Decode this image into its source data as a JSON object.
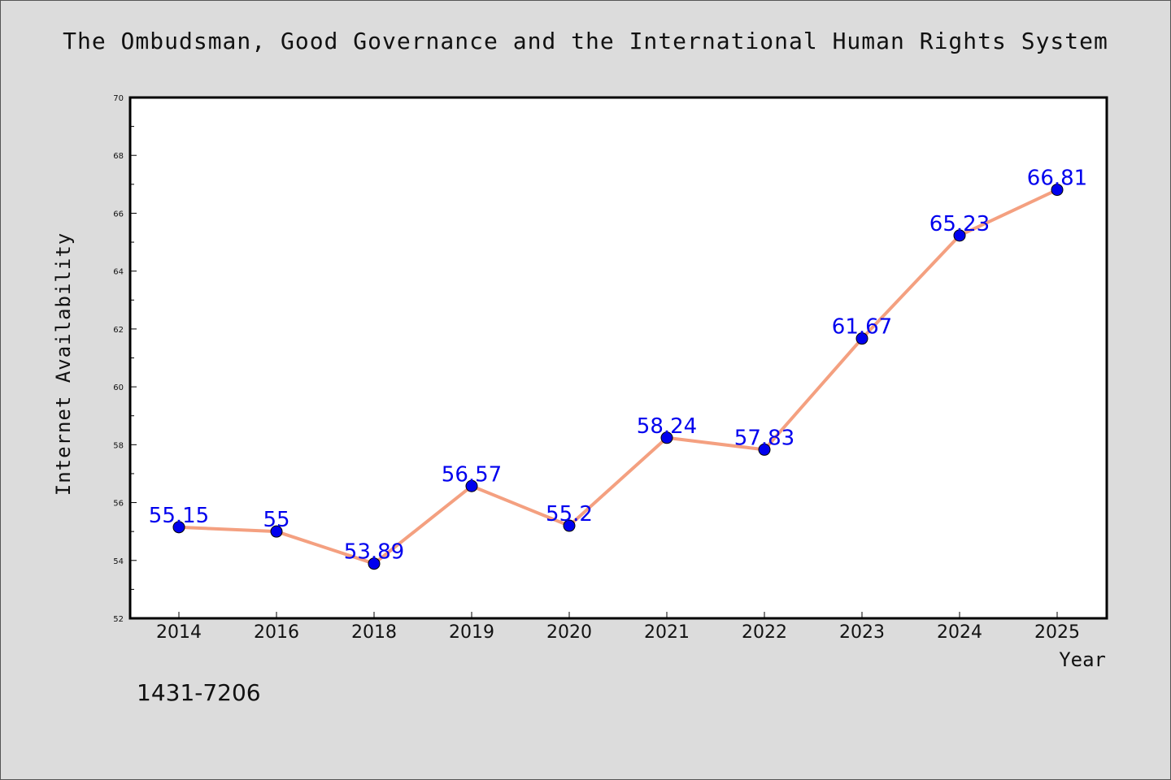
{
  "colors": {
    "background": "#dcdcdc",
    "plot_area": "#ffffff",
    "line": "#f4a080",
    "marker": "#0000ee",
    "data_label": "#0000ee"
  },
  "code_text": "1431-7206",
  "chart_data": {
    "type": "line",
    "title": "The Ombudsman, Good Governance and the International Human Rights System",
    "xlabel": "Year",
    "ylabel": "Internet Availability",
    "categories": [
      "2014",
      "2016",
      "2018",
      "2019",
      "2020",
      "2021",
      "2022",
      "2023",
      "2024",
      "2025"
    ],
    "series": [
      {
        "values": [
          55.15,
          55,
          53.89,
          56.57,
          55.2,
          58.24,
          57.83,
          61.67,
          65.23,
          66.81
        ]
      }
    ],
    "ylim": [
      52,
      70
    ],
    "yticks": [
      52,
      54,
      56,
      58,
      60,
      62,
      64,
      66,
      68,
      70
    ],
    "grid": false,
    "legend": "none"
  }
}
